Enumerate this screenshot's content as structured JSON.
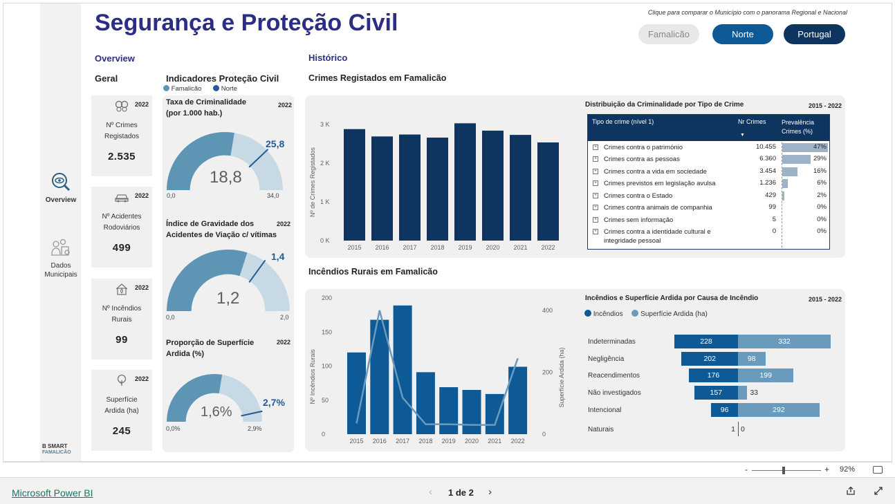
{
  "header": {
    "title": "Segurança e Proteção Civil",
    "hint": "Clique para comparar o Município com o panorama Regional e Nacional",
    "buttons": [
      "Famalicão",
      "Norte",
      "Portugal"
    ]
  },
  "nav": {
    "items": [
      {
        "label": "Overview",
        "icon": "search-eye-icon"
      },
      {
        "label": "Dados Municipais",
        "icon": "people-icon"
      }
    ],
    "logo": {
      "line1": "B SMART",
      "line2": "FAMALICÃO"
    }
  },
  "sections": {
    "overview": "Overview",
    "historico": "Histórico",
    "geral": "Geral",
    "indicadores": "Indicadores Proteção Civil",
    "crimes_heading": "Crimes Registados em Famalicão",
    "incendios_heading": "Incêndios Rurais em Famalicão"
  },
  "legend_indicadores": [
    {
      "name": "Famalicão",
      "color": "#5f95b4"
    },
    {
      "name": "Norte",
      "color": "#1f5c99"
    }
  ],
  "cards": [
    {
      "icon": "handcuffs-icon",
      "year": "2022",
      "label": "Nº Crimes Registados",
      "value": "2.535"
    },
    {
      "icon": "car-icon",
      "year": "2022",
      "label": "Nº Acidentes Rodoviários",
      "value": "499"
    },
    {
      "icon": "house-fire-icon",
      "year": "2022",
      "label": "Nº Incêndios Rurais",
      "value": "99"
    },
    {
      "icon": "tree-icon",
      "year": "2022",
      "label": "Superfície Ardida (ha)",
      "value": "245"
    }
  ],
  "gauges": [
    {
      "title1": "Taxa de Criminalidade",
      "title2": "(por 1.000 hab.)",
      "year": "2022",
      "min": "0,0",
      "max": "34,0",
      "value": "18,8",
      "target": "25,8",
      "value_num": 18.8,
      "target_num": 25.8,
      "max_num": 34.0
    },
    {
      "title1": "Índice de Gravidade dos",
      "title2": "Acidentes de Viação c/ vítimas",
      "year": "2022",
      "min": "0,0",
      "max": "2,0",
      "value": "1,2",
      "target": "1,4",
      "value_num": 1.2,
      "target_num": 1.4,
      "max_num": 2.0
    },
    {
      "title1": "Proporção de Superfície",
      "title2": "Ardida (%)",
      "year": "2022",
      "min": "0,0%",
      "max": "2,9%",
      "value": "1,6%",
      "target": "2,7%",
      "value_num": 1.6,
      "target_num": 2.7,
      "max_num": 2.9
    }
  ],
  "crime_table": {
    "title": "Distribuição da Criminalidade por Tipo de Crime",
    "period": "2015 - 2022",
    "columns": [
      "Tipo de crime (nível 1)",
      "Nr Crimes",
      "Prevalência Crimes (%)"
    ],
    "rows": [
      {
        "name": "Crimes contra o património",
        "nr": "10.455",
        "pct": "47%",
        "pct_num": 47
      },
      {
        "name": "Crimes contra as pessoas",
        "nr": "6.360",
        "pct": "29%",
        "pct_num": 29
      },
      {
        "name": "Crimes contra a vida em sociedade",
        "nr": "3.454",
        "pct": "16%",
        "pct_num": 16
      },
      {
        "name": "Crimes previstos em legislação avulsa",
        "nr": "1.236",
        "pct": "6%",
        "pct_num": 6
      },
      {
        "name": "Crimes contra o Estado",
        "nr": "429",
        "pct": "2%",
        "pct_num": 2
      },
      {
        "name": "Crimes contra animais de companhia",
        "nr": "99",
        "pct": "0%",
        "pct_num": 0
      },
      {
        "name": "Crimes sem informação",
        "nr": "5",
        "pct": "0%",
        "pct_num": 0
      },
      {
        "name": "Crimes contra a identidade cultural e integridade pessoal",
        "nr": "0",
        "pct": "0%",
        "pct_num": 0
      }
    ]
  },
  "fire_causes": {
    "title": "Incêndios e Superfície Ardida por Causa de Incêndio",
    "period": "2015 - 2022",
    "legend": [
      {
        "name": "Incêndios",
        "color": "#0e5a96"
      },
      {
        "name": "Superfície Ardida (ha)",
        "color": "#6a9bbd"
      }
    ],
    "rows": [
      {
        "cause": "Indeterminadas",
        "incendios": 228,
        "area": 332
      },
      {
        "cause": "Negligência",
        "incendios": 202,
        "area": 98
      },
      {
        "cause": "Reacendimentos",
        "incendios": 176,
        "area": 199
      },
      {
        "cause": "Não investigados",
        "incendios": 157,
        "area": 33
      },
      {
        "cause": "Intencional",
        "incendios": 96,
        "area": 292
      },
      {
        "cause": "Naturais",
        "incendios": 1,
        "area": 0
      }
    ]
  },
  "chart_data": [
    {
      "type": "bar",
      "ylabel": "Nº de Crimes Registados",
      "categories": [
        "2015",
        "2016",
        "2017",
        "2018",
        "2019",
        "2020",
        "2021",
        "2022"
      ],
      "values": [
        2880,
        2690,
        2740,
        2660,
        3030,
        2840,
        2730,
        2535
      ],
      "yticks": [
        "0 K",
        "1 K",
        "2 K",
        "3 K"
      ],
      "ylim": [
        0,
        3000
      ]
    },
    {
      "type": "bar",
      "ylabel": "Nº Incêndios Rurais",
      "y2label": "Superfície Ardida (ha)",
      "categories": [
        "2015",
        "2016",
        "2017",
        "2018",
        "2019",
        "2020",
        "2021",
        "2022"
      ],
      "series": [
        {
          "name": "Incêndios",
          "values": [
            120,
            168,
            189,
            91,
            69,
            65,
            59,
            99
          ]
        },
        {
          "name": "Superfície Ardida (ha)",
          "values": [
            35,
            400,
            118,
            32,
            32,
            30,
            30,
            245
          ]
        }
      ],
      "yticks": [
        "0",
        "50",
        "100",
        "150",
        "200"
      ],
      "y2ticks": [
        "0",
        "200",
        "400"
      ],
      "ylim": [
        0,
        200
      ],
      "y2lim": [
        0,
        440
      ]
    }
  ],
  "footer": {
    "brand": "Microsoft Power BI",
    "page": "1 de 2",
    "zoom": "92%"
  }
}
